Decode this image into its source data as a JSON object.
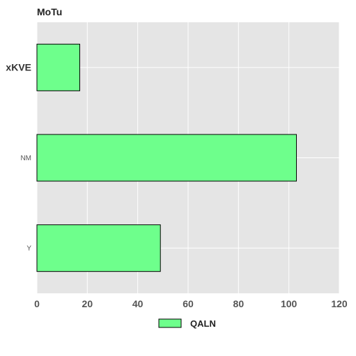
{
  "chart_data": {
    "type": "bar",
    "orientation": "horizontal",
    "title": "MoTu",
    "categories": [
      "xKVE",
      "NM",
      "Y"
    ],
    "series": [
      {
        "name": "QALN",
        "values": [
          17,
          103,
          49
        ],
        "color": "#6eff8c"
      }
    ],
    "xlim": [
      0,
      120
    ],
    "x_ticks": [
      0,
      20,
      40,
      60,
      80,
      100,
      120
    ],
    "xlabel": "",
    "ylabel": "",
    "grid": true,
    "legend_position": "bottom-center"
  },
  "colors": {
    "plot_background": "#e5e5e5",
    "grid": "#ffffff",
    "bar_fill": "#6eff8c",
    "bar_edge": "#000000"
  }
}
